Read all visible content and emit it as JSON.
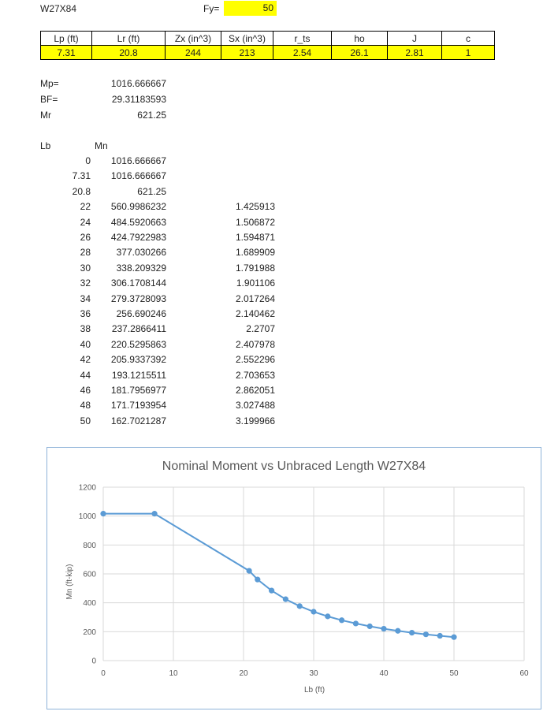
{
  "section": {
    "title": "W27X84",
    "fy_label": "Fy=",
    "fy_value": "50"
  },
  "properties": {
    "headers": [
      "Lp (ft)",
      "Lr (ft)",
      "Zx (in^3)",
      "Sx (in^3)",
      "r_ts",
      "ho",
      "J",
      "c"
    ],
    "values": [
      "7.31",
      "20.8",
      "244",
      "213",
      "2.54",
      "26.1",
      "2.81",
      "1"
    ]
  },
  "summary": [
    {
      "label": "Mp=",
      "value": "1016.666667"
    },
    {
      "label": "BF=",
      "value": "29.31183593"
    },
    {
      "label": "Mr",
      "value": "621.25"
    }
  ],
  "table_headers": {
    "lb": "Lb",
    "mn": "Mn"
  },
  "rows": [
    {
      "lb": "0",
      "mn": "1016.666667",
      "ratio": ""
    },
    {
      "lb": "7.31",
      "mn": "1016.666667",
      "ratio": ""
    },
    {
      "lb": "20.8",
      "mn": "621.25",
      "ratio": ""
    },
    {
      "lb": "22",
      "mn": "560.9986232",
      "ratio": "1.425913"
    },
    {
      "lb": "24",
      "mn": "484.5920663",
      "ratio": "1.506872"
    },
    {
      "lb": "26",
      "mn": "424.7922983",
      "ratio": "1.594871"
    },
    {
      "lb": "28",
      "mn": "377.030266",
      "ratio": "1.689909"
    },
    {
      "lb": "30",
      "mn": "338.209329",
      "ratio": "1.791988"
    },
    {
      "lb": "32",
      "mn": "306.1708144",
      "ratio": "1.901106"
    },
    {
      "lb": "34",
      "mn": "279.3728093",
      "ratio": "2.017264"
    },
    {
      "lb": "36",
      "mn": "256.690246",
      "ratio": "2.140462"
    },
    {
      "lb": "38",
      "mn": "237.2866411",
      "ratio": "2.2707"
    },
    {
      "lb": "40",
      "mn": "220.5295863",
      "ratio": "2.407978"
    },
    {
      "lb": "42",
      "mn": "205.9337392",
      "ratio": "2.552296"
    },
    {
      "lb": "44",
      "mn": "193.1215511",
      "ratio": "2.703653"
    },
    {
      "lb": "46",
      "mn": "181.7956977",
      "ratio": "2.862051"
    },
    {
      "lb": "48",
      "mn": "171.7193954",
      "ratio": "3.027488"
    },
    {
      "lb": "50",
      "mn": "162.7021287",
      "ratio": "3.199966"
    }
  ],
  "colors": {
    "highlight": "#ffff00",
    "series": "#5b9bd5",
    "grid": "#d9d9d9",
    "chart_border": "#8fb3d9"
  },
  "chart_data": {
    "type": "scatter",
    "title": "Nominal Moment vs Unbraced Length W27X84",
    "xlabel": "Lb (ft)",
    "ylabel": "Mn (ft-kip)",
    "xlim": [
      0,
      60
    ],
    "ylim": [
      0,
      1200
    ],
    "xticks": [
      "0",
      "10",
      "20",
      "30",
      "40",
      "50",
      "60"
    ],
    "yticks": [
      "0",
      "200",
      "400",
      "600",
      "800",
      "1000",
      "1200"
    ],
    "grid": true,
    "legend": "none",
    "lines": true,
    "markers": true,
    "x": [
      0,
      7.31,
      20.8,
      22,
      24,
      26,
      28,
      30,
      32,
      34,
      36,
      38,
      40,
      42,
      44,
      46,
      48,
      50
    ],
    "y": [
      1016.67,
      1016.67,
      621.25,
      561.0,
      484.59,
      424.79,
      377.03,
      338.21,
      306.17,
      279.37,
      256.69,
      237.29,
      220.53,
      205.93,
      193.12,
      181.8,
      171.72,
      162.7
    ]
  }
}
